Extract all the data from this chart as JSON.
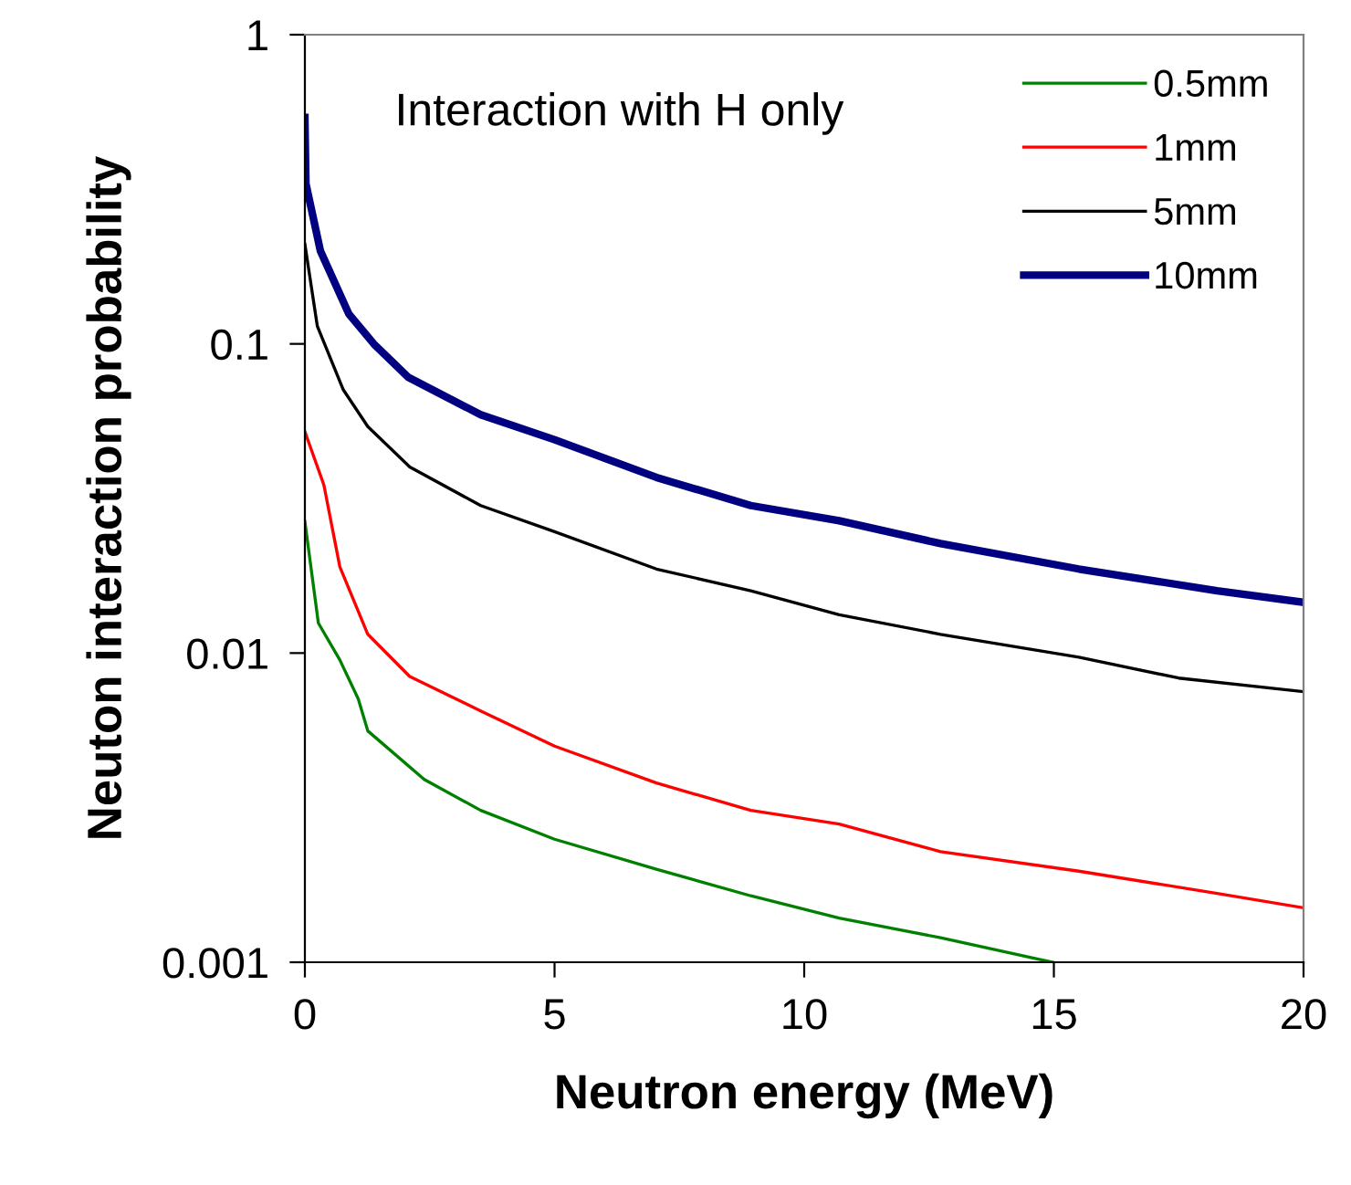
{
  "chart_data": {
    "type": "line",
    "xlabel": "Neutron energy (MeV)",
    "ylabel": "Neuton interaction probability",
    "log": "y",
    "xlim": [
      0,
      20
    ],
    "ylim": [
      0.001,
      1
    ],
    "xticks": [
      0,
      5,
      10,
      15,
      20
    ],
    "yticks": [
      0.001,
      0.01,
      0.1,
      1
    ],
    "grid": false,
    "legend": "top right",
    "marker": "none",
    "line_style": "solid",
    "annotations": [
      "Interaction with H only"
    ],
    "series": [
      {
        "name": "0.5mm",
        "color": "#008000",
        "x": [
          0,
          0.27,
          0.7,
          1.07,
          1.26,
          2.39,
          3.52,
          5.0,
          7.04,
          8.93,
          10.7,
          12.73,
          14.73,
          14.98
        ],
        "values": [
          0.0266,
          0.0125,
          0.0095,
          0.0071,
          0.0056,
          0.0039,
          0.0031,
          0.0025,
          0.002,
          0.00164,
          0.00139,
          0.0012,
          0.00102,
          0.001
        ]
      },
      {
        "name": "1mm",
        "color": "#ff0000",
        "x": [
          0,
          0.38,
          0.7,
          1.26,
          2.1,
          3.52,
          5.0,
          7.04,
          8.93,
          10.7,
          12.73,
          15.5,
          18.27,
          20
        ],
        "values": [
          0.052,
          0.035,
          0.019,
          0.0115,
          0.0084,
          0.0065,
          0.005,
          0.0038,
          0.0031,
          0.0028,
          0.00228,
          0.00197,
          0.00167,
          0.0015
        ]
      },
      {
        "name": "5mm",
        "color": "#000000",
        "x": [
          0,
          0.25,
          0.77,
          1.26,
          2.1,
          3.52,
          5.0,
          7.04,
          8.93,
          10.7,
          12.73,
          15.5,
          17.5,
          20
        ],
        "values": [
          0.21,
          0.114,
          0.071,
          0.054,
          0.04,
          0.03,
          0.0247,
          0.0187,
          0.0159,
          0.0133,
          0.0115,
          0.0097,
          0.0083,
          0.0075
        ]
      },
      {
        "name": "10mm",
        "color": "#000080",
        "x": [
          0,
          0.02,
          0.31,
          0.88,
          1.38,
          2.07,
          3.52,
          5.0,
          7.04,
          8.93,
          10.7,
          12.73,
          15.5,
          18.27,
          20
        ],
        "values": [
          0.54,
          0.33,
          0.2,
          0.125,
          0.1,
          0.078,
          0.059,
          0.049,
          0.037,
          0.03,
          0.0268,
          0.0226,
          0.0187,
          0.0159,
          0.0146
        ]
      }
    ]
  }
}
